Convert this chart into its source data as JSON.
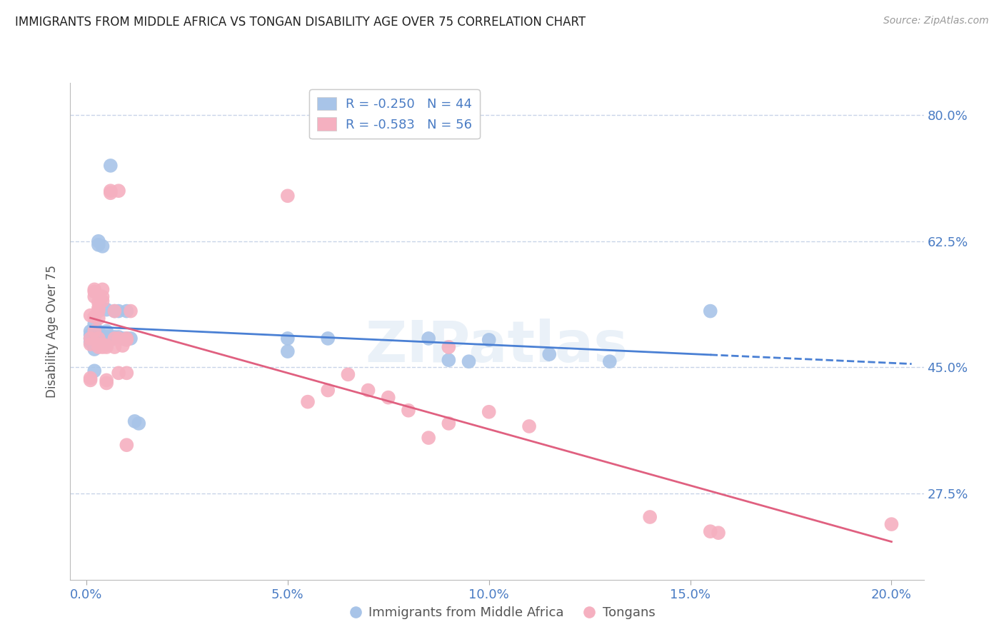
{
  "title": "IMMIGRANTS FROM MIDDLE AFRICA VS TONGAN DISABILITY AGE OVER 75 CORRELATION CHART",
  "source": "Source: ZipAtlas.com",
  "ylabel": "Disability Age Over 75",
  "xlabel_ticks": [
    "0.0%",
    "5.0%",
    "10.0%",
    "15.0%",
    "20.0%"
  ],
  "xlabel_vals": [
    0.0,
    0.05,
    0.1,
    0.15,
    0.2
  ],
  "ylabel_ticks_right": [
    "80.0%",
    "62.5%",
    "45.0%",
    "27.5%"
  ],
  "ylabel_vals": [
    0.8,
    0.625,
    0.45,
    0.275
  ],
  "ylim": [
    0.155,
    0.845
  ],
  "xlim": [
    -0.004,
    0.208
  ],
  "blue_R": -0.25,
  "blue_N": 44,
  "pink_R": -0.583,
  "pink_N": 56,
  "blue_color": "#a8c4e8",
  "pink_color": "#f5b0c0",
  "blue_line_color": "#4a80d4",
  "pink_line_color": "#e06080",
  "blue_scatter": [
    [
      0.001,
      0.49
    ],
    [
      0.001,
      0.495
    ],
    [
      0.001,
      0.5
    ],
    [
      0.001,
      0.485
    ],
    [
      0.002,
      0.5
    ],
    [
      0.002,
      0.49
    ],
    [
      0.002,
      0.475
    ],
    [
      0.002,
      0.445
    ],
    [
      0.002,
      0.51
    ],
    [
      0.003,
      0.492
    ],
    [
      0.003,
      0.482
    ],
    [
      0.003,
      0.5
    ],
    [
      0.003,
      0.62
    ],
    [
      0.003,
      0.625
    ],
    [
      0.004,
      0.618
    ],
    [
      0.004,
      0.492
    ],
    [
      0.004,
      0.488
    ],
    [
      0.005,
      0.5
    ],
    [
      0.005,
      0.482
    ],
    [
      0.005,
      0.53
    ],
    [
      0.005,
      0.492
    ],
    [
      0.006,
      0.73
    ],
    [
      0.006,
      0.492
    ],
    [
      0.006,
      0.488
    ],
    [
      0.007,
      0.528
    ],
    [
      0.007,
      0.492
    ],
    [
      0.008,
      0.492
    ],
    [
      0.008,
      0.528
    ],
    [
      0.009,
      0.49
    ],
    [
      0.01,
      0.49
    ],
    [
      0.01,
      0.528
    ],
    [
      0.011,
      0.49
    ],
    [
      0.012,
      0.375
    ],
    [
      0.013,
      0.372
    ],
    [
      0.05,
      0.49
    ],
    [
      0.05,
      0.472
    ],
    [
      0.06,
      0.49
    ],
    [
      0.085,
      0.49
    ],
    [
      0.09,
      0.46
    ],
    [
      0.095,
      0.458
    ],
    [
      0.1,
      0.488
    ],
    [
      0.115,
      0.468
    ],
    [
      0.13,
      0.458
    ],
    [
      0.155,
      0.528
    ]
  ],
  "pink_scatter": [
    [
      0.001,
      0.522
    ],
    [
      0.001,
      0.482
    ],
    [
      0.001,
      0.49
    ],
    [
      0.001,
      0.435
    ],
    [
      0.001,
      0.432
    ],
    [
      0.002,
      0.5
    ],
    [
      0.002,
      0.558
    ],
    [
      0.002,
      0.555
    ],
    [
      0.002,
      0.548
    ],
    [
      0.002,
      0.52
    ],
    [
      0.003,
      0.54
    ],
    [
      0.003,
      0.532
    ],
    [
      0.003,
      0.528
    ],
    [
      0.003,
      0.49
    ],
    [
      0.003,
      0.482
    ],
    [
      0.003,
      0.478
    ],
    [
      0.003,
      0.518
    ],
    [
      0.004,
      0.558
    ],
    [
      0.004,
      0.542
    ],
    [
      0.004,
      0.548
    ],
    [
      0.004,
      0.482
    ],
    [
      0.004,
      0.478
    ],
    [
      0.005,
      0.48
    ],
    [
      0.005,
      0.478
    ],
    [
      0.005,
      0.432
    ],
    [
      0.005,
      0.428
    ],
    [
      0.006,
      0.695
    ],
    [
      0.006,
      0.692
    ],
    [
      0.007,
      0.49
    ],
    [
      0.007,
      0.528
    ],
    [
      0.007,
      0.478
    ],
    [
      0.008,
      0.49
    ],
    [
      0.008,
      0.695
    ],
    [
      0.008,
      0.442
    ],
    [
      0.009,
      0.48
    ],
    [
      0.01,
      0.49
    ],
    [
      0.01,
      0.488
    ],
    [
      0.01,
      0.442
    ],
    [
      0.01,
      0.342
    ],
    [
      0.011,
      0.528
    ],
    [
      0.05,
      0.688
    ],
    [
      0.055,
      0.402
    ],
    [
      0.06,
      0.418
    ],
    [
      0.065,
      0.44
    ],
    [
      0.07,
      0.418
    ],
    [
      0.075,
      0.408
    ],
    [
      0.08,
      0.39
    ],
    [
      0.085,
      0.352
    ],
    [
      0.09,
      0.372
    ],
    [
      0.09,
      0.478
    ],
    [
      0.1,
      0.388
    ],
    [
      0.11,
      0.368
    ],
    [
      0.14,
      0.242
    ],
    [
      0.155,
      0.222
    ],
    [
      0.157,
      0.22
    ],
    [
      0.2,
      0.232
    ]
  ],
  "watermark": "ZIPatlas",
  "grid_color": "#c8d4e8",
  "axis_label_color": "#4a7cc4",
  "background_color": "#ffffff",
  "title_color": "#222222"
}
